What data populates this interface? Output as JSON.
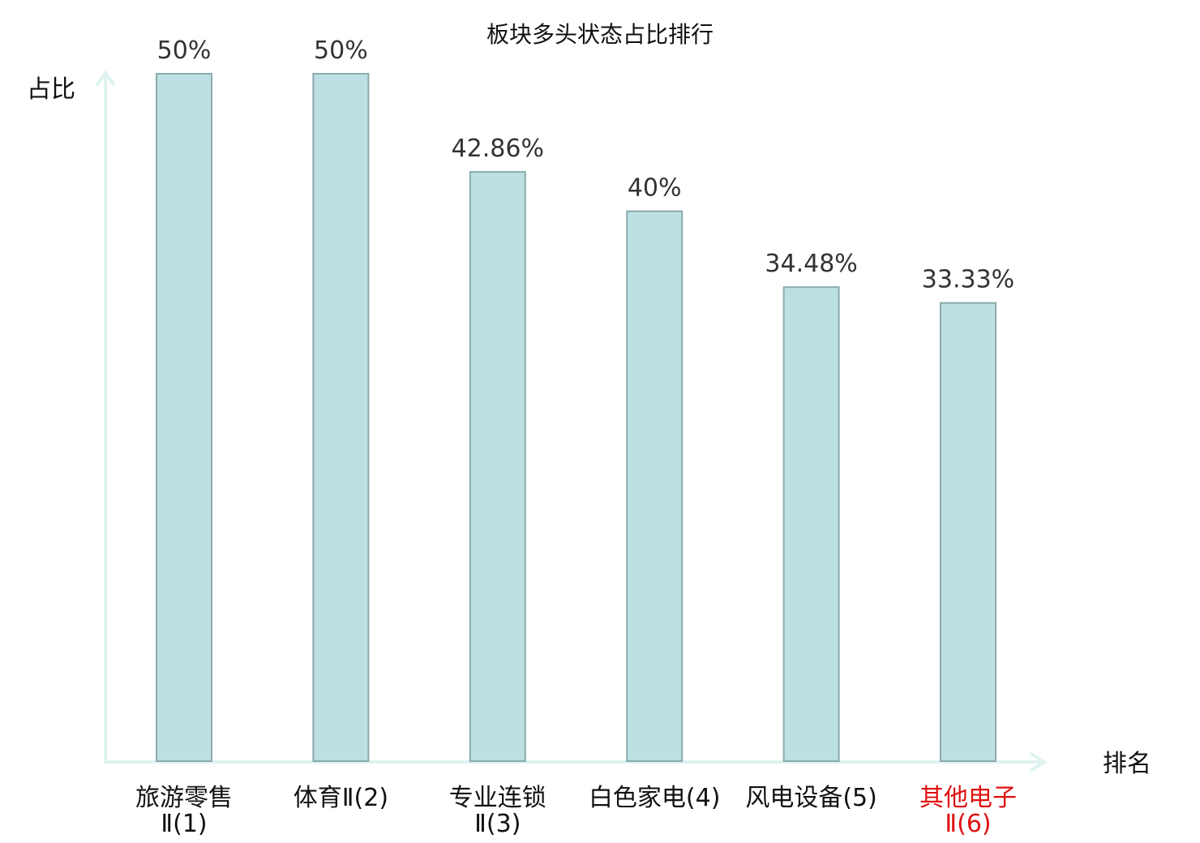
{
  "chart_data": {
    "type": "bar",
    "title": "板块多头状态占比排行",
    "ylabel": "占比",
    "xlabel": "排名",
    "ylim": [
      0,
      50
    ],
    "grid": false,
    "categories": [
      [
        "旅游零售",
        "Ⅱ(1)"
      ],
      [
        "体育Ⅱ(2)"
      ],
      [
        "专业连锁",
        "Ⅱ(3)"
      ],
      [
        "白色家电(4)"
      ],
      [
        "风电设备(5)"
      ],
      [
        "其他电子",
        "Ⅱ(6)"
      ]
    ],
    "values": [
      50,
      50,
      42.86,
      40,
      34.48,
      33.33
    ],
    "value_labels": [
      "50%",
      "50%",
      "42.86%",
      "40%",
      "34.48%",
      "33.33%"
    ],
    "highlight_index": 5,
    "colors": {
      "bar_fill": "#bde0e3",
      "bar_stroke": "#8aabad",
      "axis": "#def3ef",
      "highlight_label": "#e01010"
    }
  }
}
